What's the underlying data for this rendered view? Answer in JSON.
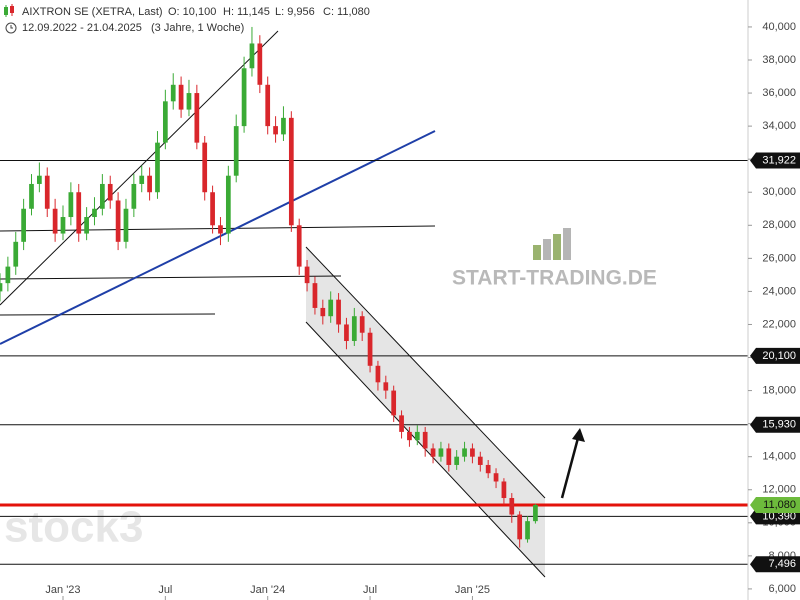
{
  "header": {
    "title": "AIXTRON SE (XETRA, Last)",
    "open": "O: 10,100",
    "high": "H: 11,145",
    "low": "L: 9,956",
    "close": "C: 11,080",
    "range": "12.09.2022 - 21.04.2025",
    "span": "(3 Jahre, 1 Woche)"
  },
  "watermarks": [
    "START-TRADING.DE",
    "stock3"
  ],
  "chart_data": {
    "type": "candlestick",
    "x": [
      0,
      2,
      4,
      6,
      8,
      10,
      12,
      14,
      16,
      18,
      20,
      22,
      24,
      26,
      28,
      30,
      32,
      34,
      36,
      38,
      40,
      42,
      44,
      46,
      48,
      50,
      52,
      54,
      56,
      58,
      60,
      62,
      64,
      66,
      68,
      70,
      72,
      74,
      76,
      78,
      80,
      82,
      84,
      86,
      88,
      90,
      92,
      94,
      96,
      98,
      100,
      102,
      104,
      106,
      108,
      110,
      112,
      114,
      116,
      118,
      120,
      122,
      124,
      126,
      128,
      130,
      132,
      134,
      136
    ],
    "open": [
      24000,
      24500,
      25500,
      27000,
      29000,
      30500,
      31000,
      29000,
      27500,
      28500,
      30000,
      27500,
      28500,
      29000,
      30500,
      29500,
      27000,
      29000,
      30500,
      31000,
      30000,
      33000,
      35500,
      36500,
      35000,
      36000,
      33000,
      30000,
      28000,
      27500,
      31000,
      34000,
      37500,
      39000,
      36500,
      34000,
      33500,
      34500,
      28000,
      25500,
      24500,
      23000,
      22500,
      23500,
      22000,
      21000,
      22500,
      21500,
      19500,
      18500,
      18000,
      16500,
      15500,
      15000,
      15500,
      14500,
      14000,
      14500,
      13500,
      14000,
      14500,
      14000,
      13500,
      13000,
      12500,
      11500,
      10500,
      9000,
      10100
    ],
    "high": [
      25100,
      26100,
      27600,
      29600,
      31100,
      31800,
      31500,
      29600,
      29200,
      30600,
      30500,
      29100,
      29700,
      31100,
      31000,
      30000,
      29600,
      31100,
      31600,
      31500,
      33700,
      36200,
      37200,
      37000,
      36800,
      36500,
      33400,
      30400,
      28500,
      31600,
      34700,
      38200,
      40000,
      39500,
      37000,
      34600,
      35200,
      34900,
      28400,
      25900,
      24900,
      23500,
      24000,
      23900,
      22400,
      23000,
      22800,
      21800,
      19800,
      18900,
      18300,
      16800,
      15800,
      15900,
      15800,
      14800,
      14900,
      14800,
      14400,
      14900,
      14800,
      14300,
      13800,
      13300,
      12700,
      11800,
      10700,
      10400,
      11145
    ],
    "low": [
      23400,
      24000,
      25000,
      26500,
      28600,
      30000,
      28500,
      27000,
      27100,
      28000,
      27000,
      27100,
      28000,
      28600,
      29000,
      26500,
      26600,
      28500,
      30000,
      29500,
      29600,
      32600,
      35000,
      34500,
      34600,
      32600,
      29500,
      27500,
      26800,
      27000,
      30600,
      33600,
      37000,
      36000,
      33500,
      33000,
      33100,
      27600,
      25000,
      24000,
      22600,
      22000,
      22100,
      21500,
      20500,
      20700,
      21000,
      19100,
      18000,
      17500,
      16100,
      15100,
      14600,
      14700,
      14000,
      13600,
      13700,
      13100,
      13200,
      13700,
      13600,
      13100,
      12700,
      12100,
      11100,
      10000,
      8500,
      8800,
      9956
    ],
    "close": [
      24500,
      25500,
      27000,
      29000,
      30500,
      31000,
      29000,
      27500,
      28500,
      30000,
      27500,
      28500,
      29000,
      30500,
      29500,
      27000,
      29000,
      30500,
      31000,
      30000,
      33000,
      35500,
      36500,
      35000,
      36000,
      33000,
      30000,
      28000,
      27500,
      31000,
      34000,
      37500,
      39000,
      36500,
      34000,
      33500,
      34500,
      28000,
      25500,
      24500,
      23000,
      22500,
      23500,
      22000,
      21000,
      22500,
      21500,
      19500,
      18500,
      18000,
      16500,
      15500,
      15000,
      15500,
      14500,
      14000,
      14500,
      13500,
      14000,
      14500,
      14000,
      13500,
      13000,
      12500,
      11500,
      10500,
      9000,
      10100,
      11080
    ],
    "up_color": "#3aaa35",
    "down_color": "#d9262b",
    "xlim": [
      0,
      190
    ],
    "ylim": [
      5330,
      41630
    ],
    "xticks": [
      {
        "value": 16,
        "label": "Jan '23"
      },
      {
        "value": 42,
        "label": "Jul"
      },
      {
        "value": 68,
        "label": "Jan '24"
      },
      {
        "value": 94,
        "label": "Jul"
      },
      {
        "value": 120,
        "label": "Jan '25"
      }
    ],
    "yticks": [
      {
        "value": 6000,
        "label": "6,000"
      },
      {
        "value": 8000,
        "label": "8,000"
      },
      {
        "value": 10000,
        "label": "10,000"
      },
      {
        "value": 12000,
        "label": "12,000"
      },
      {
        "value": 14000,
        "label": "14,000"
      },
      {
        "value": 16000,
        "label": "16,000"
      },
      {
        "value": 18000,
        "label": "18,000"
      },
      {
        "value": 20000,
        "label": "20,000"
      },
      {
        "value": 22000,
        "label": "22,000"
      },
      {
        "value": 24000,
        "label": "24,000"
      },
      {
        "value": 26000,
        "label": "26,000"
      },
      {
        "value": 28000,
        "label": "28,000"
      },
      {
        "value": 30000,
        "label": "30,000"
      },
      {
        "value": 32000,
        "label": "32,000"
      },
      {
        "value": 34000,
        "label": "34,000"
      },
      {
        "value": 36000,
        "label": "36,000"
      },
      {
        "value": 38000,
        "label": "38,000"
      },
      {
        "value": 40000,
        "label": "40,000"
      }
    ],
    "levels": [
      {
        "value": 31922,
        "label": "31,922",
        "line_color": "#111111",
        "box_color": "#111111"
      },
      {
        "value": 20100,
        "label": "20,100",
        "line_color": "#111111",
        "box_color": "#111111"
      },
      {
        "value": 15930,
        "label": "15,930",
        "line_color": "#111111",
        "box_color": "#111111"
      },
      {
        "value": 10390,
        "label": "10,390",
        "line_color": "#111111",
        "box_color": "#111111"
      },
      {
        "value": 7496,
        "label": "7,496",
        "line_color": "#111111",
        "box_color": "#111111"
      },
      {
        "value": 11080,
        "label": "11,080",
        "line_color": "#e3120b",
        "box_color": "#6dbb3c"
      }
    ]
  }
}
